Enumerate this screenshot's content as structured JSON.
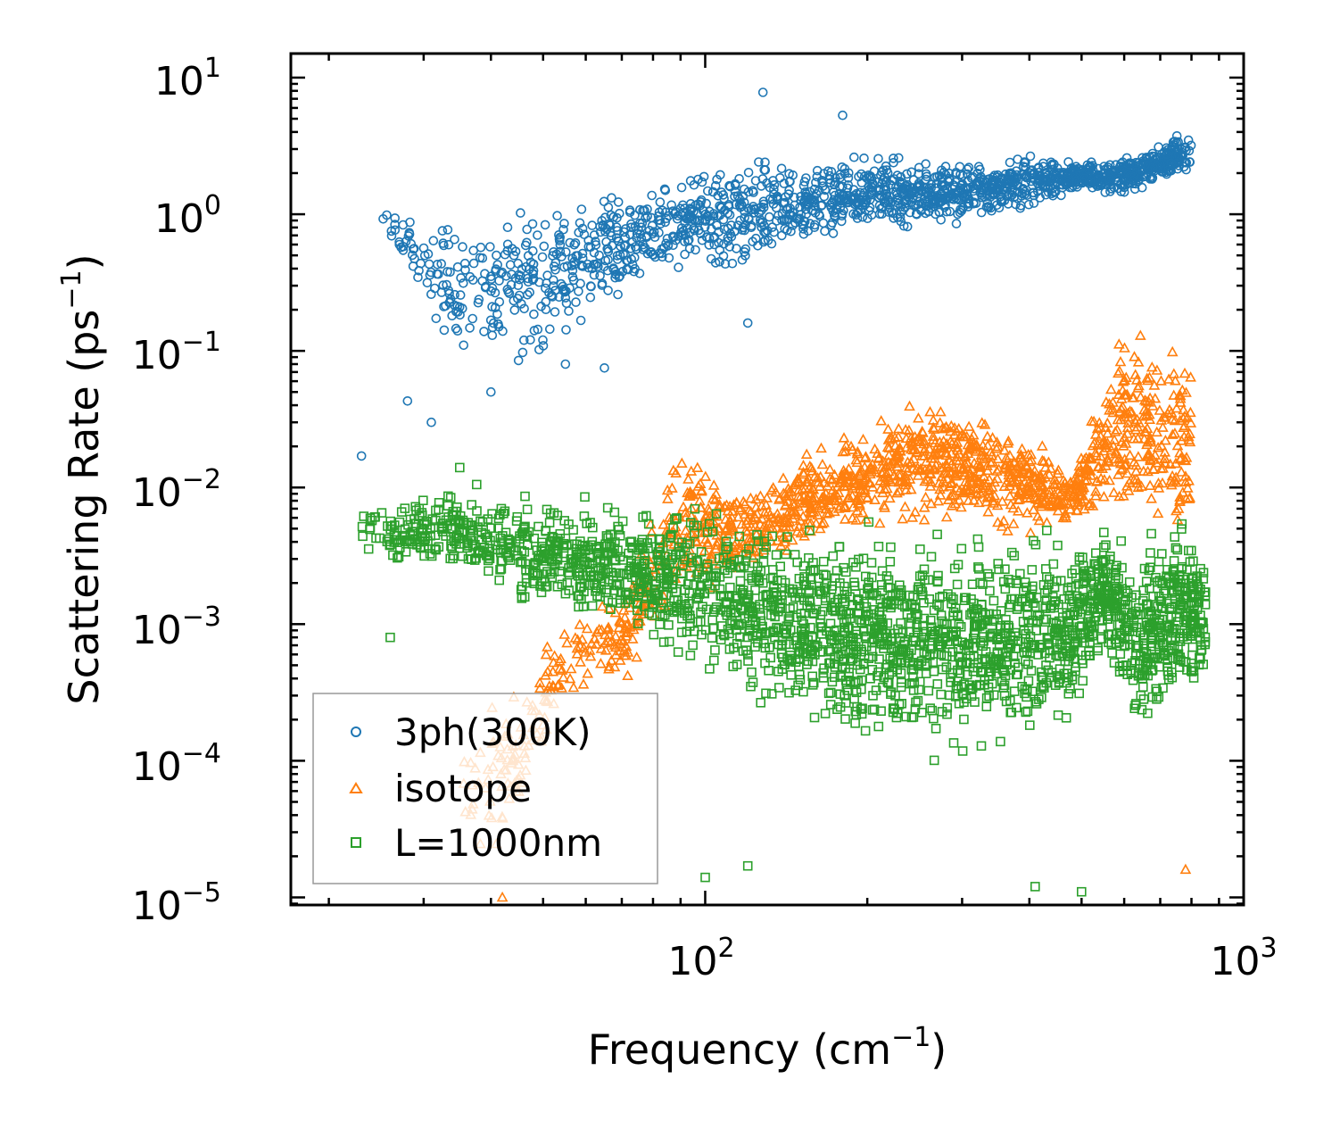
{
  "chart_data": {
    "type": "scatter",
    "title": "",
    "xlabel": "Frequency",
    "xlabel_unit_base": "cm",
    "xlabel_unit_exp": "−1",
    "ylabel": "Scattering Rate",
    "ylabel_unit_base": "ps",
    "ylabel_unit_exp": "−1",
    "xscale": "log",
    "yscale": "log",
    "xlim": [
      17,
      1000
    ],
    "ylim": [
      8.8e-06,
      15
    ],
    "x_ticks": [
      {
        "value": 100,
        "base": "10",
        "exp": "2"
      },
      {
        "value": 1000,
        "base": "10",
        "exp": "3"
      }
    ],
    "y_ticks": [
      {
        "value": 10,
        "base": "10",
        "exp": "1"
      },
      {
        "value": 1,
        "base": "10",
        "exp": "0"
      },
      {
        "value": 0.1,
        "base": "10",
        "exp": "−1"
      },
      {
        "value": 0.01,
        "base": "10",
        "exp": "−2"
      },
      {
        "value": 0.001,
        "base": "10",
        "exp": "−3"
      },
      {
        "value": 0.0001,
        "base": "10",
        "exp": "−4"
      },
      {
        "value": 1e-05,
        "base": "10",
        "exp": "−5"
      }
    ],
    "legend_position": "lower-left",
    "series": [
      {
        "name": "3ph(300K)",
        "marker": "circle",
        "color": "#1f77b4",
        "envelope": [
          {
            "x": 25,
            "ylow": 0.9,
            "yhigh": 1.1
          },
          {
            "x": 35,
            "ylow": 0.05,
            "yhigh": 1.35
          },
          {
            "x": 50,
            "ylow": 0.07,
            "yhigh": 1.6
          },
          {
            "x": 70,
            "ylow": 0.2,
            "yhigh": 1.8
          },
          {
            "x": 90,
            "ylow": 0.35,
            "yhigh": 2.0
          },
          {
            "x": 120,
            "ylow": 0.3,
            "yhigh": 3.5
          },
          {
            "x": 150,
            "ylow": 0.5,
            "yhigh": 2.5
          },
          {
            "x": 200,
            "ylow": 0.7,
            "yhigh": 3.0
          },
          {
            "x": 300,
            "ylow": 0.8,
            "yhigh": 2.5
          },
          {
            "x": 400,
            "ylow": 1.0,
            "yhigh": 3.0
          },
          {
            "x": 500,
            "ylow": 1.5,
            "yhigh": 2.5
          },
          {
            "x": 600,
            "ylow": 1.3,
            "yhigh": 2.8
          },
          {
            "x": 800,
            "ylow": 1.8,
            "yhigh": 4.5
          }
        ],
        "points": [
          {
            "x": 128,
            "y": 7.8
          },
          {
            "x": 180,
            "y": 5.3
          },
          {
            "x": 31,
            "y": 0.03
          },
          {
            "x": 23,
            "y": 0.017
          },
          {
            "x": 45,
            "y": 0.085
          },
          {
            "x": 55,
            "y": 0.08
          },
          {
            "x": 120,
            "y": 0.16
          },
          {
            "x": 28,
            "y": 0.043
          },
          {
            "x": 65,
            "y": 0.075
          },
          {
            "x": 40,
            "y": 0.05
          }
        ]
      },
      {
        "name": "isotope",
        "marker": "triangle",
        "color": "#ff7f0e",
        "envelope": [
          {
            "x": 35,
            "ylow": 1e-05,
            "yhigh": 0.0002
          },
          {
            "x": 45,
            "ylow": 3e-05,
            "yhigh": 0.0004
          },
          {
            "x": 55,
            "ylow": 0.0002,
            "yhigh": 0.0012
          },
          {
            "x": 70,
            "ylow": 0.0003,
            "yhigh": 0.002
          },
          {
            "x": 90,
            "ylow": 0.001,
            "yhigh": 0.035
          },
          {
            "x": 120,
            "ylow": 0.002,
            "yhigh": 0.01
          },
          {
            "x": 180,
            "ylow": 0.004,
            "yhigh": 0.03
          },
          {
            "x": 250,
            "ylow": 0.005,
            "yhigh": 0.05
          },
          {
            "x": 350,
            "ylow": 0.004,
            "yhigh": 0.04
          },
          {
            "x": 480,
            "ylow": 0.005,
            "yhigh": 0.015
          },
          {
            "x": 600,
            "ylow": 0.005,
            "yhigh": 0.2
          },
          {
            "x": 800,
            "ylow": 0.003,
            "yhigh": 0.13
          }
        ],
        "points": [
          {
            "x": 780,
            "y": 1.6e-05
          },
          {
            "x": 42,
            "y": 1e-05
          }
        ]
      },
      {
        "name": "L=1000nm",
        "marker": "square",
        "color": "#2ca02c",
        "envelope": [
          {
            "x": 23,
            "ylow": 0.003,
            "yhigh": 0.008
          },
          {
            "x": 35,
            "ylow": 0.002,
            "yhigh": 0.012
          },
          {
            "x": 50,
            "ylow": 0.001,
            "yhigh": 0.01
          },
          {
            "x": 70,
            "ylow": 0.0008,
            "yhigh": 0.008
          },
          {
            "x": 100,
            "ylow": 0.0003,
            "yhigh": 0.01
          },
          {
            "x": 150,
            "ylow": 0.0002,
            "yhigh": 0.006
          },
          {
            "x": 200,
            "ylow": 0.0001,
            "yhigh": 0.006
          },
          {
            "x": 300,
            "ylow": 8e-05,
            "yhigh": 0.007
          },
          {
            "x": 450,
            "ylow": 0.0001,
            "yhigh": 0.006
          },
          {
            "x": 550,
            "ylow": 0.0005,
            "yhigh": 0.006
          },
          {
            "x": 650,
            "ylow": 0.0001,
            "yhigh": 0.005
          },
          {
            "x": 750,
            "ylow": 0.0002,
            "yhigh": 0.009
          },
          {
            "x": 850,
            "ylow": 0.0003,
            "yhigh": 0.004
          }
        ],
        "points": [
          {
            "x": 120,
            "y": 1.7e-05
          },
          {
            "x": 410,
            "y": 1.2e-05
          },
          {
            "x": 500,
            "y": 1.1e-05
          },
          {
            "x": 100,
            "y": 1.4e-05
          },
          {
            "x": 26,
            "y": 0.0008
          },
          {
            "x": 35,
            "y": 0.014
          }
        ]
      }
    ]
  }
}
